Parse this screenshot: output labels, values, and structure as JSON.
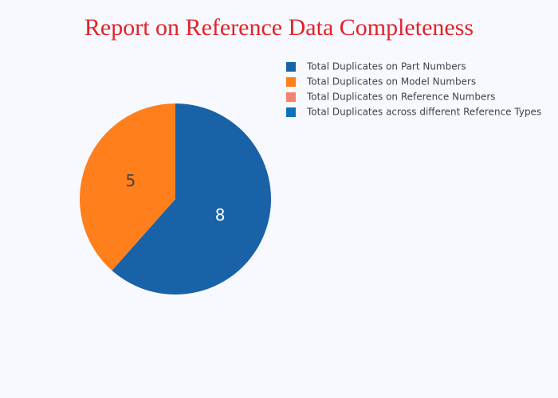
{
  "chart_data": {
    "type": "pie",
    "title": "Report on Reference Data Completeness",
    "categories": [
      "Total Duplicates on Part Numbers",
      "Total Duplicates on Model Numbers",
      "Total Duplicates on Reference Numbers",
      "Total Duplicates across different Reference Types"
    ],
    "values": [
      8,
      5,
      0,
      0
    ],
    "colors": [
      "#1a62a7",
      "#fe7f1c",
      "#f5826f",
      "#0d72b8"
    ],
    "legend": "top-right"
  }
}
